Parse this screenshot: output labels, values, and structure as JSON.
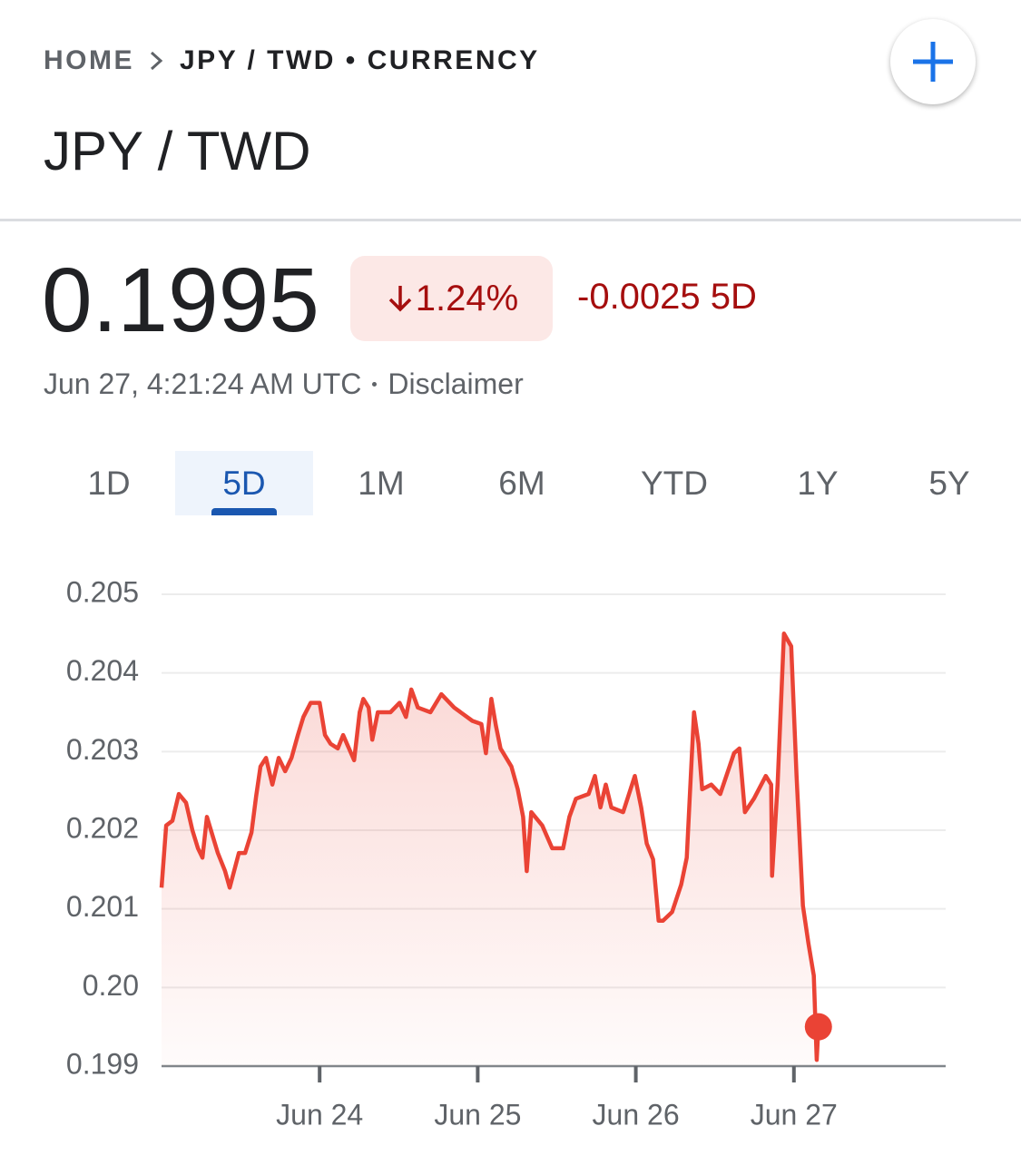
{
  "breadcrumb": {
    "home": "HOME",
    "current": "JPY / TWD • CURRENCY"
  },
  "title": "JPY / TWD",
  "quote": {
    "price": "0.1995",
    "change_percent": "1.24%",
    "change": "-0.0025",
    "period": "5D",
    "timestamp": "Jun 27, 4:21:24 AM UTC",
    "disclaimer": "Disclaimer"
  },
  "tabs": [
    "1D",
    "5D",
    "1M",
    "6M",
    "YTD",
    "1Y",
    "5Y"
  ],
  "selected_tab": 1,
  "chart_data": {
    "type": "line",
    "color": "#ea4335",
    "grid": true,
    "x": [
      23.0,
      23.029,
      23.069,
      23.109,
      23.155,
      23.195,
      23.23,
      23.259,
      23.287,
      23.356,
      23.402,
      23.431,
      23.489,
      23.529,
      23.569,
      23.598,
      23.626,
      23.661,
      23.701,
      23.741,
      23.782,
      23.822,
      23.862,
      23.897,
      23.943,
      24.0,
      24.034,
      24.069,
      24.115,
      24.149,
      24.218,
      24.253,
      24.276,
      24.31,
      24.333,
      24.368,
      24.448,
      24.506,
      24.546,
      24.58,
      24.621,
      24.701,
      24.77,
      24.851,
      24.966,
      25.023,
      25.052,
      25.086,
      25.115,
      25.144,
      25.213,
      25.253,
      25.287,
      25.31,
      25.339,
      25.408,
      25.471,
      25.54,
      25.58,
      25.621,
      25.701,
      25.741,
      25.776,
      25.81,
      25.845,
      25.92,
      25.994,
      26.034,
      26.069,
      26.109,
      26.144,
      26.172,
      26.23,
      26.287,
      26.322,
      26.345,
      26.368,
      26.397,
      26.42,
      26.477,
      26.534,
      26.621,
      26.655,
      26.69,
      26.747,
      26.822,
      26.856,
      26.862,
      26.897,
      26.937,
      26.983,
      27.017,
      27.057,
      27.092,
      27.126,
      27.144,
      27.155
    ],
    "values": [
      0.20127,
      0.20206,
      0.20212,
      0.20246,
      0.20235,
      0.202,
      0.20177,
      0.20165,
      0.20217,
      0.20171,
      0.20148,
      0.20127,
      0.20171,
      0.20171,
      0.20197,
      0.20243,
      0.20281,
      0.20292,
      0.20258,
      0.20292,
      0.20275,
      0.20292,
      0.20321,
      0.20344,
      0.20362,
      0.20362,
      0.20321,
      0.2031,
      0.20304,
      0.20321,
      0.20289,
      0.2035,
      0.20367,
      0.20356,
      0.20315,
      0.2035,
      0.2035,
      0.20362,
      0.20344,
      0.20379,
      0.20356,
      0.2035,
      0.20373,
      0.20356,
      0.20339,
      0.20335,
      0.20298,
      0.20367,
      0.20333,
      0.20304,
      0.20281,
      0.20252,
      0.20217,
      0.20148,
      0.20223,
      0.20206,
      0.20177,
      0.20177,
      0.20217,
      0.2024,
      0.20246,
      0.20269,
      0.20229,
      0.20258,
      0.20229,
      0.20223,
      0.20269,
      0.20229,
      0.20183,
      0.20163,
      0.20085,
      0.20085,
      0.20096,
      0.20131,
      0.20165,
      0.20258,
      0.2035,
      0.2031,
      0.20252,
      0.20258,
      0.20246,
      0.20298,
      0.20304,
      0.20223,
      0.2024,
      0.20269,
      0.20258,
      0.20142,
      0.20258,
      0.2045,
      0.20434,
      0.20269,
      0.20104,
      0.20056,
      0.20015,
      0.19908,
      0.1995
    ],
    "xlim": [
      23.0,
      27.96
    ],
    "xticks": [
      {
        "value": 24,
        "label": "Jun 24"
      },
      {
        "value": 25,
        "label": "Jun 25"
      },
      {
        "value": 26,
        "label": "Jun 26"
      },
      {
        "value": 27,
        "label": "Jun 27"
      }
    ],
    "ylim": [
      0.199,
      0.205
    ],
    "yticks": [
      0.199,
      {
        "value": 0.2,
        "label": "0.20"
      },
      0.201,
      0.202,
      0.203,
      0.204,
      0.205
    ]
  }
}
